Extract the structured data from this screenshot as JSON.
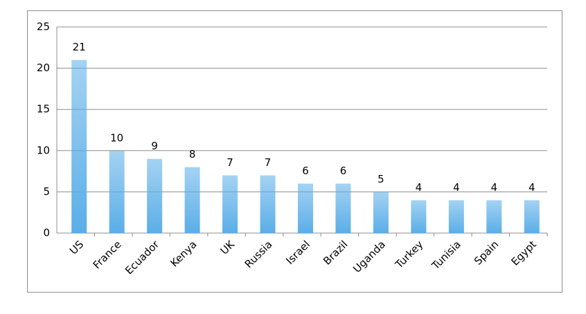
{
  "chart_data": {
    "type": "bar",
    "categories": [
      "US",
      "France",
      "Ecuador",
      "Kenya",
      "UK",
      "Russia",
      "Israel",
      "Brazil",
      "Uganda",
      "Turkey",
      "Tunisia",
      "Spain",
      "Egypt"
    ],
    "values": [
      21,
      10,
      9,
      8,
      7,
      7,
      6,
      6,
      5,
      4,
      4,
      4,
      4
    ],
    "color": "#5aaee8",
    "ylim": [
      0,
      25
    ],
    "yticks": [
      0,
      5,
      10,
      15,
      20,
      25
    ],
    "grid": true
  }
}
